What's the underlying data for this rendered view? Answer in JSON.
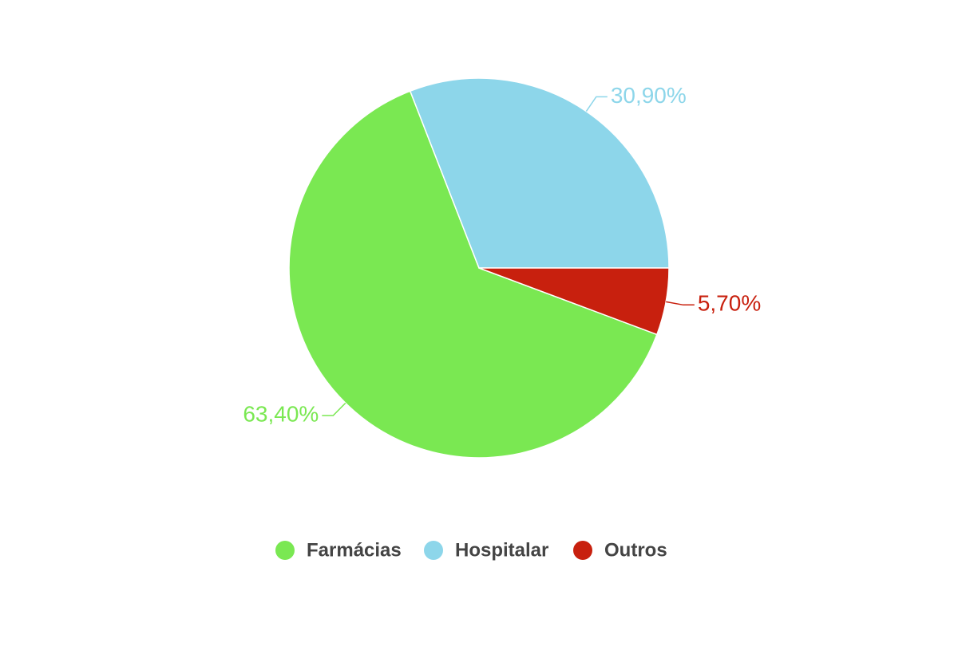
{
  "chart_data": {
    "type": "pie",
    "categories": [
      "Farmácias",
      "Hospitalar",
      "Outros"
    ],
    "values": [
      63.4,
      30.9,
      5.7
    ],
    "value_labels": [
      "63,40%",
      "30,90%",
      "5,70%"
    ],
    "colors": [
      "#7ae852",
      "#8dd6ea",
      "#c8200e"
    ],
    "legend": "bottom"
  }
}
